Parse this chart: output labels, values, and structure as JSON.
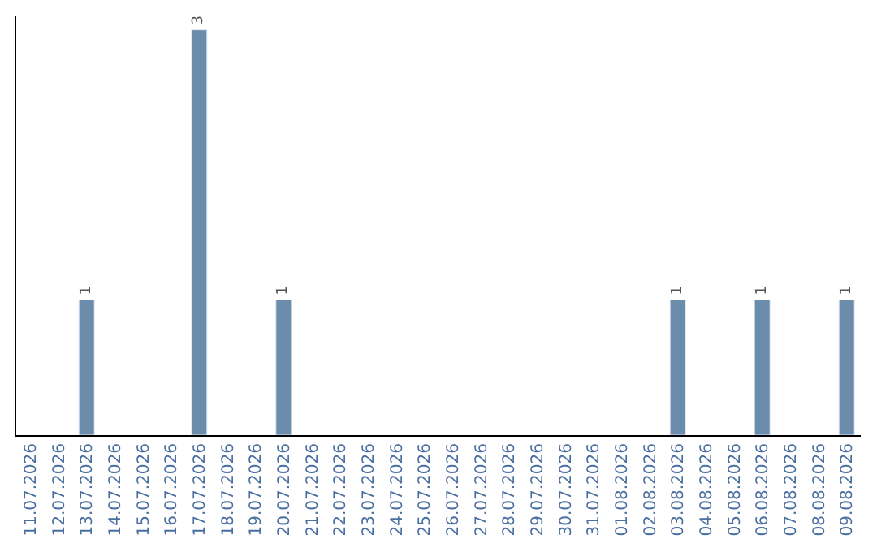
{
  "chart_data": {
    "type": "bar",
    "categories": [
      "11.07.2026",
      "12.07.2026",
      "13.07.2026",
      "14.07.2026",
      "15.07.2026",
      "16.07.2026",
      "17.07.2026",
      "18.07.2026",
      "19.07.2026",
      "20.07.2026",
      "21.07.2026",
      "22.07.2026",
      "23.07.2026",
      "24.07.2026",
      "25.07.2026",
      "26.07.2026",
      "27.07.2026",
      "28.07.2026",
      "29.07.2026",
      "30.07.2026",
      "31.07.2026",
      "01.08.2026",
      "02.08.2026",
      "03.08.2026",
      "04.08.2026",
      "05.08.2026",
      "06.08.2026",
      "07.08.2026",
      "08.08.2026",
      "09.08.2026"
    ],
    "values": [
      null,
      null,
      1,
      null,
      null,
      null,
      3,
      null,
      null,
      1,
      null,
      null,
      null,
      null,
      null,
      null,
      null,
      null,
      null,
      null,
      null,
      null,
      null,
      1,
      null,
      null,
      1,
      null,
      null,
      1
    ],
    "value_labels": [
      null,
      null,
      "1",
      null,
      null,
      null,
      "3",
      null,
      null,
      "1",
      null,
      null,
      null,
      null,
      null,
      null,
      null,
      null,
      null,
      null,
      null,
      null,
      null,
      "1",
      null,
      null,
      "1",
      null,
      null,
      "1"
    ],
    "color": "#6b8cab",
    "ylim": [
      0,
      3.1
    ],
    "tick_labels": "x",
    "legend": false
  }
}
